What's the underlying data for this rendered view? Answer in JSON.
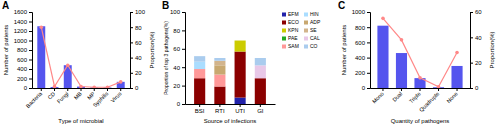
{
  "chart_data": [
    {
      "type": "bar",
      "title": "A",
      "categories": [
        "Bacteria",
        "CD",
        "Fungi",
        "MB",
        "MP",
        "Syphilis",
        "Virus"
      ],
      "xlabel": "Type of microbial",
      "ylabel": "Number of patients",
      "y2label": "Proportion(%)",
      "ylim": [
        0,
        1600
      ],
      "yticks": [
        0,
        200,
        400,
        600,
        800,
        1000,
        1200,
        1400,
        1600
      ],
      "y2lim": [
        0,
        100
      ],
      "y2ticks": [
        0,
        20,
        40,
        60,
        80,
        100
      ],
      "series": [
        {
          "type": "bar",
          "color": "#5555ee",
          "values": [
            1300,
            20,
            480,
            30,
            10,
            10,
            130
          ]
        },
        {
          "type": "line",
          "axis": "y2",
          "color": "#ff8888",
          "marker": "circle",
          "line_style": "solid",
          "values": [
            80,
            2,
            30,
            2,
            1,
            1,
            8
          ]
        }
      ]
    },
    {
      "type": "bar",
      "title": "B",
      "stacked": true,
      "legend": "right",
      "categories": [
        "BSI",
        "RTI",
        "UTI",
        "GI"
      ],
      "xlabel": "Source of infections",
      "ylabel": "Proportion of top 3 pathogens(%)",
      "ylim": [
        0,
        100
      ],
      "yticks": [
        0,
        20,
        40,
        60,
        80,
        100
      ],
      "series": [
        {
          "name": "EFM",
          "color": "#2222aa",
          "values": [
            0,
            0,
            7,
            0
          ]
        },
        {
          "name": "ECO",
          "color": "#8b0000",
          "values": [
            28,
            19,
            50,
            28
          ]
        },
        {
          "name": "KPN",
          "color": "#cccc00",
          "values": [
            0,
            0,
            12,
            0
          ]
        },
        {
          "name": "PAE",
          "color": "#22aa22",
          "values": [
            0,
            0,
            0,
            0
          ]
        },
        {
          "name": "SAM",
          "color": "#ff9999",
          "values": [
            10,
            13,
            0,
            0
          ]
        },
        {
          "name": "HIN",
          "color": "#aaddff",
          "values": [
            8,
            0,
            0,
            0
          ]
        },
        {
          "name": "ADP",
          "color": "#c8a870",
          "values": [
            0,
            10,
            0,
            0
          ]
        },
        {
          "name": "SE",
          "color": "#d2b48c",
          "values": [
            0,
            5,
            0,
            0
          ]
        },
        {
          "name": "CAL",
          "color": "#e8c8e8",
          "values": [
            0,
            0,
            0,
            14
          ]
        },
        {
          "name": "CO",
          "color": "#aaccee",
          "values": [
            6,
            3,
            0,
            8
          ]
        }
      ]
    },
    {
      "type": "bar",
      "title": "C",
      "categories": [
        "Mono",
        "Dual",
        "Triple",
        "Quadruple",
        "None"
      ],
      "xlabel": "Quantity of pathogens",
      "ylabel": "Number of patients",
      "y2label": "Proportion(%)",
      "ylim": [
        0,
        1000
      ],
      "yticks": [
        0,
        200,
        400,
        600,
        800,
        1000
      ],
      "y2lim": [
        0,
        60
      ],
      "y2ticks": [
        0,
        20,
        40,
        60
      ],
      "series": [
        {
          "type": "bar",
          "color": "#5555ee",
          "values": [
            820,
            460,
            130,
            10,
            290
          ]
        },
        {
          "type": "line",
          "axis": "y2",
          "color": "#ff8888",
          "marker": "circle",
          "line_style": "solid",
          "values": [
            55,
            38,
            8,
            1,
            28
          ]
        }
      ]
    }
  ]
}
